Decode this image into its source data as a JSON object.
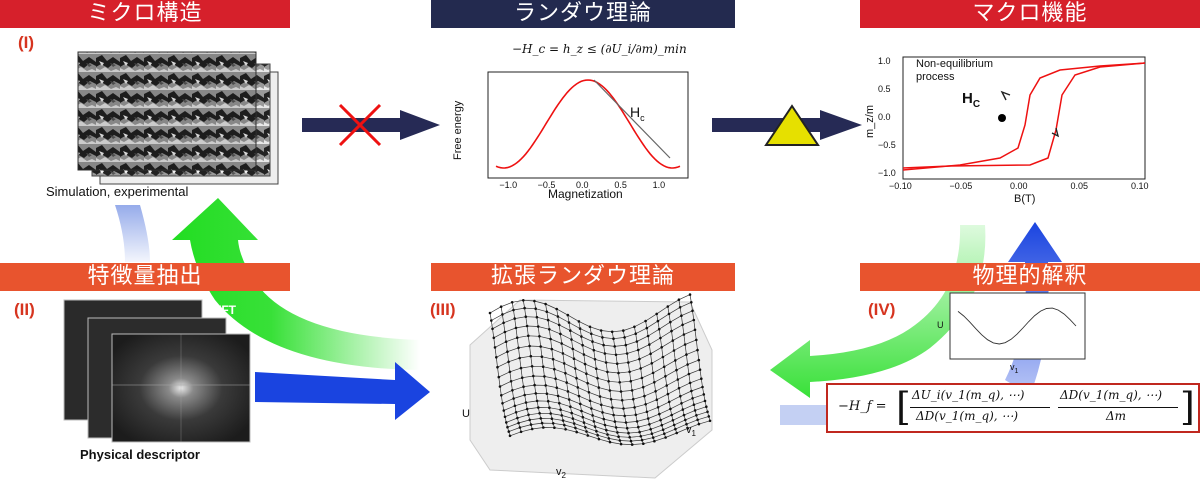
{
  "headers": {
    "micro": "ミクロ構造",
    "landau": "ランダウ理論",
    "macro": "マクロ機能",
    "feature": "特徴量抽出",
    "ext_landau": "拡張ランダウ理論",
    "physics": "物理的解釈"
  },
  "roman": {
    "i": "(I)",
    "ii": "(II)",
    "iii": "(III)",
    "iv": "(IV)"
  },
  "captions": {
    "simulation": "Simulation, experimental",
    "fft": "FFT",
    "descriptor": "Physical descriptor"
  },
  "landau_eq": "−H_c = h_z ≤ (∂U_i/∂m)_min",
  "landau_plot": {
    "ylabel": "Free energy",
    "xlabel": "Magnetization",
    "hc_label": "H",
    "hc_sub": "c",
    "xticks": [
      "−1.0",
      "−0.5",
      "0.0",
      "0.5",
      "1.0"
    ]
  },
  "hysteresis_plot": {
    "annotation_line1": "Non-equilibrium",
    "annotation_line2": "process",
    "hc_label": "H",
    "hc_sub": "C",
    "ylabel": "m_z/m",
    "xlabel": "B(T)",
    "xticks": [
      "−0.10",
      "−0.05",
      "0.00",
      "0.05",
      "0.10"
    ],
    "yticks": [
      "1.0",
      "0.5",
      "0.0",
      "−0.5",
      "−1.0"
    ]
  },
  "surface_plot": {
    "zlabel": "U",
    "xlabel": "v",
    "xsub": "2",
    "ylabel": "v",
    "ysub": "1"
  },
  "small_plot": {
    "ylabel": "U",
    "xlabel": "v",
    "xsub": "1"
  },
  "ext_eq": {
    "lhs": "−H_f =",
    "num1": "ΔU_i(v_1(m_q), ⋯)",
    "den1": "ΔD(v_1(m_q), ⋯)",
    "num2": "ΔD(v_1(m_q), ⋯)",
    "den2": "Δm"
  },
  "colors": {
    "red_header": "#d6202b",
    "navy_header": "#232a4f",
    "orange_header": "#e8542e",
    "arrow_navy": "#262a55",
    "triangle": "#e6e000",
    "green_arrow": "#22dd22",
    "blue_arrow": "#1a44e0"
  }
}
